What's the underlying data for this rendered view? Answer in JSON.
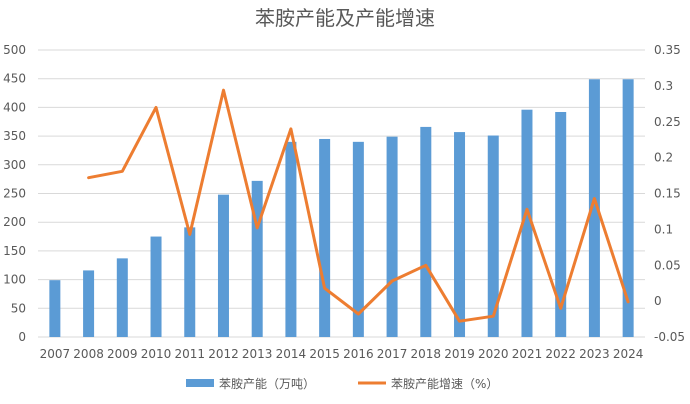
{
  "chart_data": {
    "type": "bar",
    "title": "苯胺产能及产能增速",
    "categories": [
      "2007",
      "2008",
      "2009",
      "2010",
      "2011",
      "2012",
      "2013",
      "2014",
      "2015",
      "2016",
      "2017",
      "2018",
      "2019",
      "2020",
      "2021",
      "2022",
      "2023",
      "2024"
    ],
    "series": [
      {
        "name": "苯胺产能（万吨）",
        "type": "bar",
        "axis": "left",
        "color": "#5B9BD5",
        "values": [
          99,
          116,
          137,
          175,
          191,
          248,
          272,
          340,
          345,
          340,
          349,
          366,
          357,
          351,
          396,
          392,
          449,
          449
        ]
      },
      {
        "name": "苯胺产能增速（%）",
        "type": "line",
        "axis": "right",
        "color": "#ED7D31",
        "values": [
          null,
          0.172,
          0.181,
          0.27,
          0.093,
          0.294,
          0.102,
          0.24,
          0.018,
          -0.018,
          0.028,
          0.05,
          -0.028,
          -0.021,
          0.128,
          -0.01,
          0.143,
          -0.001
        ]
      }
    ],
    "yleft": {
      "range": [
        0,
        500
      ],
      "ticks": [
        "0",
        "50",
        "100",
        "150",
        "200",
        "250",
        "300",
        "350",
        "400",
        "450",
        "500"
      ]
    },
    "yright": {
      "range": [
        -0.05,
        0.35
      ],
      "ticks": [
        "-0.05",
        "0",
        "0.05",
        "0.1",
        "0.15",
        "0.2",
        "0.25",
        "0.3",
        "0.35"
      ]
    },
    "grid": true,
    "legend": "bottom"
  }
}
